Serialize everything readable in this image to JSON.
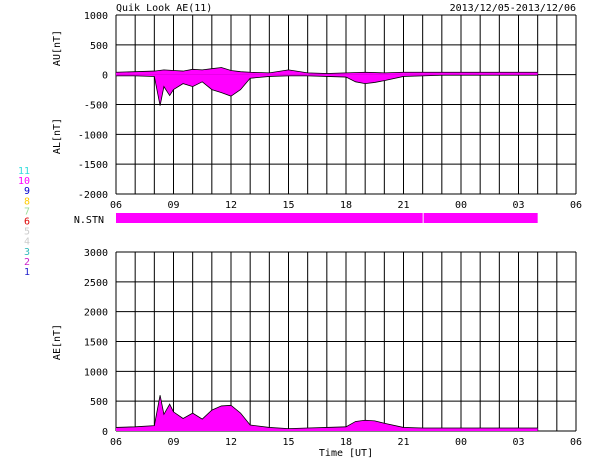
{
  "header": {
    "title": "Quik Look AE(11)",
    "date_range": "2013/12/05-2013/12/06"
  },
  "station_legend": [
    {
      "num": "11",
      "color": "#33dddd"
    },
    {
      "num": "10",
      "color": "#ff00ff"
    },
    {
      "num": "9",
      "color": "#0000cc"
    },
    {
      "num": "8",
      "color": "#ffcc00"
    },
    {
      "num": "7",
      "color": "#99dd99"
    },
    {
      "num": "6",
      "color": "#dd0000"
    },
    {
      "num": "5",
      "color": "#cccccc"
    },
    {
      "num": "4",
      "color": "#cccccc"
    },
    {
      "num": "3",
      "color": "#33bbbb"
    },
    {
      "num": "2",
      "color": "#cc22cc"
    },
    {
      "num": "1",
      "color": "#2222cc"
    }
  ],
  "colors": {
    "fill": "#ff00ff",
    "line": "#000000",
    "grid": "#000000"
  },
  "chart_data": [
    {
      "id": "au_al",
      "type": "area",
      "ylabel_top": "AU[nT]",
      "ylabel_bottom": "AL[nT]",
      "ylim": [
        -2000,
        1000
      ],
      "yticks": [
        -2000,
        -1500,
        -1000,
        -500,
        0,
        500,
        1000
      ],
      "xlim": [
        0,
        24
      ],
      "xtick_labels": [
        "06",
        "09",
        "12",
        "15",
        "18",
        "21",
        "00",
        "03",
        "06"
      ],
      "grid": true,
      "data_end_hours": 22,
      "au_series": {
        "name": "AU",
        "x_hours": [
          0,
          1,
          2,
          2.5,
          3,
          3.5,
          4,
          4.5,
          5,
          5.5,
          6,
          6.5,
          7,
          8,
          9,
          10,
          11,
          12,
          13,
          14,
          15,
          16,
          17,
          18,
          19,
          20,
          21,
          22
        ],
        "values": [
          40,
          50,
          60,
          80,
          70,
          60,
          90,
          80,
          100,
          120,
          70,
          50,
          40,
          30,
          80,
          30,
          20,
          30,
          40,
          30,
          40,
          40,
          40,
          40,
          40,
          40,
          40,
          40
        ]
      },
      "al_series": {
        "name": "AL",
        "x_hours": [
          0,
          1,
          2,
          2.3,
          2.5,
          2.8,
          3,
          3.5,
          4,
          4.5,
          5,
          5.5,
          6,
          6.5,
          7,
          8,
          9,
          10,
          11,
          12,
          12.5,
          13,
          13.5,
          14,
          15,
          16,
          17,
          18,
          19,
          20,
          21,
          22
        ],
        "values": [
          -20,
          -20,
          -30,
          -520,
          -200,
          -350,
          -250,
          -150,
          -200,
          -120,
          -250,
          -300,
          -360,
          -250,
          -60,
          -30,
          -20,
          -20,
          -30,
          -40,
          -120,
          -150,
          -130,
          -100,
          -30,
          -20,
          -10,
          -10,
          -10,
          -10,
          -10,
          -10
        ]
      }
    },
    {
      "id": "nstn",
      "type": "bar",
      "label": "N.STN",
      "segments": [
        [
          0,
          16
        ],
        [
          16.05,
          22
        ]
      ]
    },
    {
      "id": "ae",
      "type": "area",
      "ylabel": "AE[nT]",
      "xlabel": "Time [UT]",
      "ylim": [
        0,
        3000
      ],
      "yticks": [
        0,
        500,
        1000,
        1500,
        2000,
        2500,
        3000
      ],
      "xlim": [
        0,
        24
      ],
      "xtick_labels": [
        "06",
        "09",
        "12",
        "15",
        "18",
        "21",
        "00",
        "03",
        "06"
      ],
      "grid": true,
      "series": {
        "name": "AE",
        "x_hours": [
          0,
          1,
          2,
          2.3,
          2.5,
          2.8,
          3,
          3.5,
          4,
          4.5,
          5,
          5.5,
          6,
          6.5,
          7,
          8,
          9,
          10,
          11,
          12,
          12.5,
          13,
          13.5,
          14,
          15,
          16,
          17,
          18,
          19,
          20,
          21,
          22
        ],
        "values": [
          60,
          70,
          90,
          600,
          280,
          450,
          320,
          210,
          300,
          200,
          350,
          420,
          430,
          300,
          100,
          60,
          40,
          50,
          60,
          70,
          160,
          180,
          170,
          130,
          60,
          50,
          50,
          50,
          50,
          50,
          50,
          50
        ]
      }
    }
  ]
}
